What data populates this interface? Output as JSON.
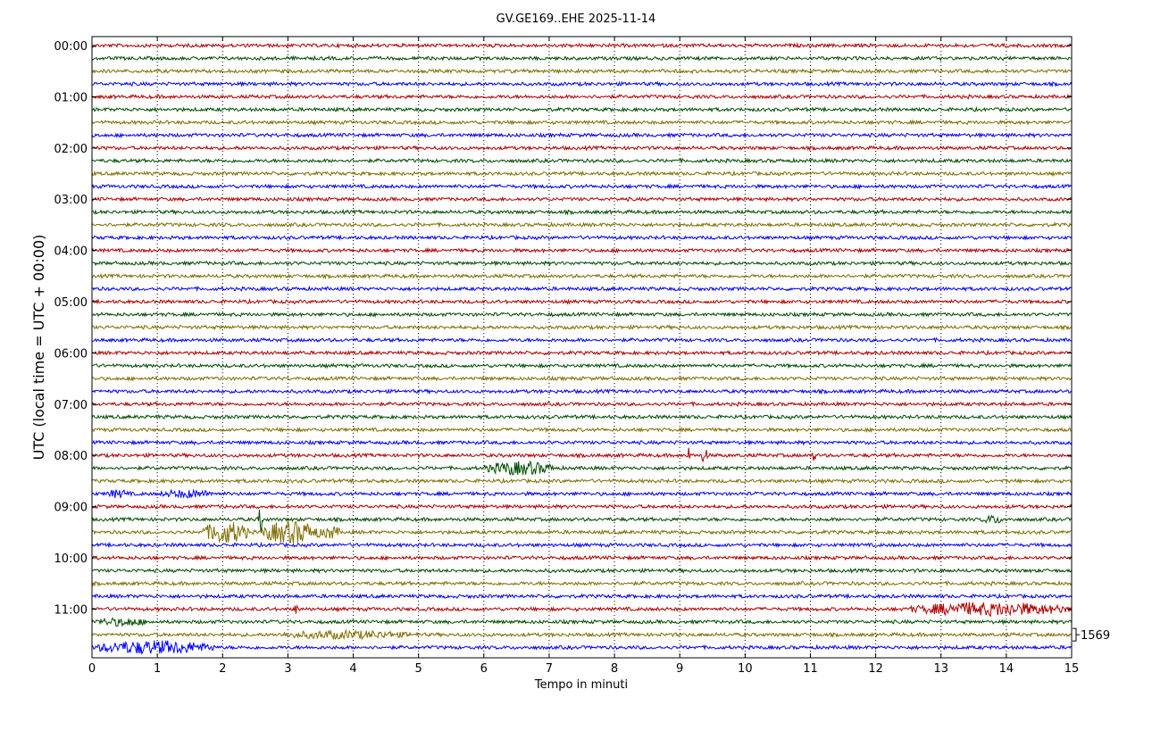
{
  "chart_data": {
    "type": "line",
    "title": "GV.GE169..EHE 2025-11-14",
    "xlabel": "Tempo in minuti",
    "ylabel": "UTC (local time = UTC + 00:00)",
    "xlim": [
      0,
      15
    ],
    "x_ticks": [
      "0",
      "1",
      "2",
      "3",
      "4",
      "5",
      "6",
      "7",
      "8",
      "9",
      "10",
      "11",
      "12",
      "13",
      "14",
      "15"
    ],
    "y_tick_labels": [
      "00:00",
      "01:00",
      "02:00",
      "03:00",
      "04:00",
      "05:00",
      "06:00",
      "07:00",
      "08:00",
      "09:00",
      "10:00",
      "11:00"
    ],
    "trace_count": 48,
    "trace_interval_minutes": 15,
    "trace_colors": [
      "#b00000",
      "#004d00",
      "#7f6d00",
      "#0000ff"
    ],
    "scale_label": "1569",
    "grid": "vertical dotted lines at each minute",
    "events": [
      {
        "trace": 33,
        "x_from": 6.0,
        "x_to": 7.1,
        "amplitude": "medium"
      },
      {
        "trace": 35,
        "x_from": 0.2,
        "x_to": 0.6,
        "amplitude": "small"
      },
      {
        "trace": 35,
        "x_from": 1.0,
        "x_to": 1.9,
        "amplitude": "small"
      },
      {
        "trace": 37,
        "x_from": 13.6,
        "x_to": 14.0,
        "amplitude": "small"
      },
      {
        "trace": 38,
        "x_from": 1.7,
        "x_to": 2.4,
        "amplitude": "large"
      },
      {
        "trace": 38,
        "x_from": 2.6,
        "x_to": 3.5,
        "amplitude": "large"
      },
      {
        "trace": 38,
        "x_from": 3.5,
        "x_to": 3.8,
        "amplitude": "medium"
      },
      {
        "trace": 44,
        "x_from": 12.5,
        "x_to": 15.0,
        "amplitude": "medium"
      },
      {
        "trace": 47,
        "x_from": 0.0,
        "x_to": 1.9,
        "amplitude": "medium"
      },
      {
        "trace": 46,
        "x_from": 2.8,
        "x_to": 5.0,
        "amplitude": "small"
      },
      {
        "trace": 45,
        "x_from": 0.0,
        "x_to": 0.9,
        "amplitude": "small"
      }
    ],
    "spikes": [
      {
        "trace": 32,
        "x": 9.15,
        "amplitude": "medium"
      },
      {
        "trace": 32,
        "x": 9.38,
        "amplitude": "large"
      },
      {
        "trace": 32,
        "x": 11.05,
        "amplitude": "small"
      },
      {
        "trace": 37,
        "x": 2.58,
        "amplitude": "large"
      },
      {
        "trace": 44,
        "x": 3.12,
        "amplitude": "small"
      }
    ]
  }
}
